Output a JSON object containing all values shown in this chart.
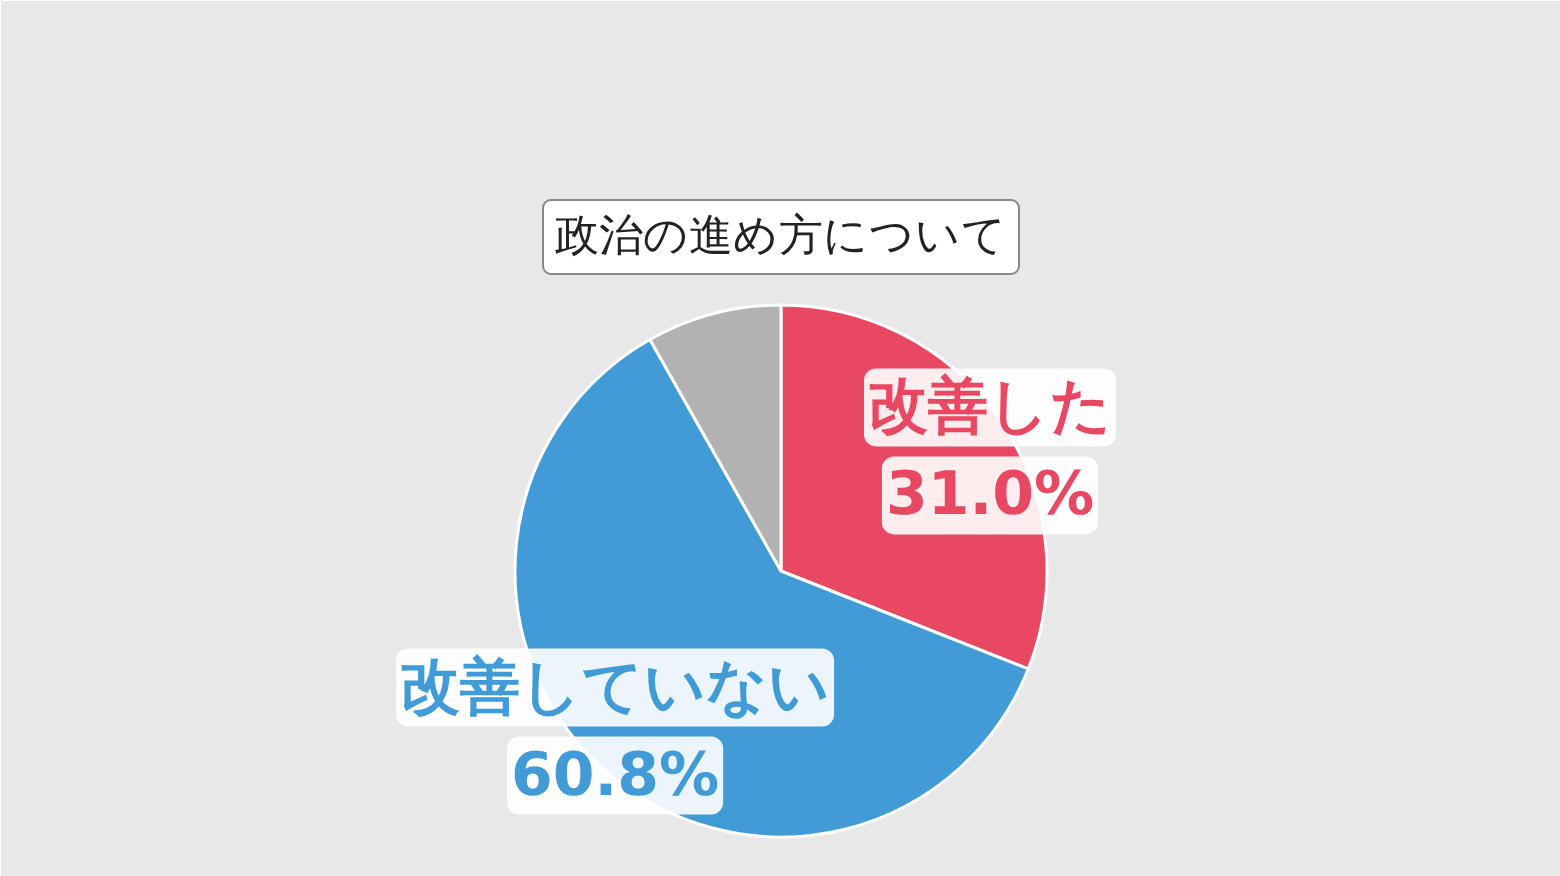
{
  "chart_data": {
    "type": "pie",
    "title": "政治の進め方について",
    "categories": [
      "改善した",
      "改善していない",
      null
    ],
    "values": [
      31.0,
      60.8,
      8.2
    ],
    "colors": [
      "#e84862",
      "#409bd6",
      "#b2b2b2"
    ],
    "value_labels": [
      "31.0%",
      "60.8%",
      null
    ]
  }
}
